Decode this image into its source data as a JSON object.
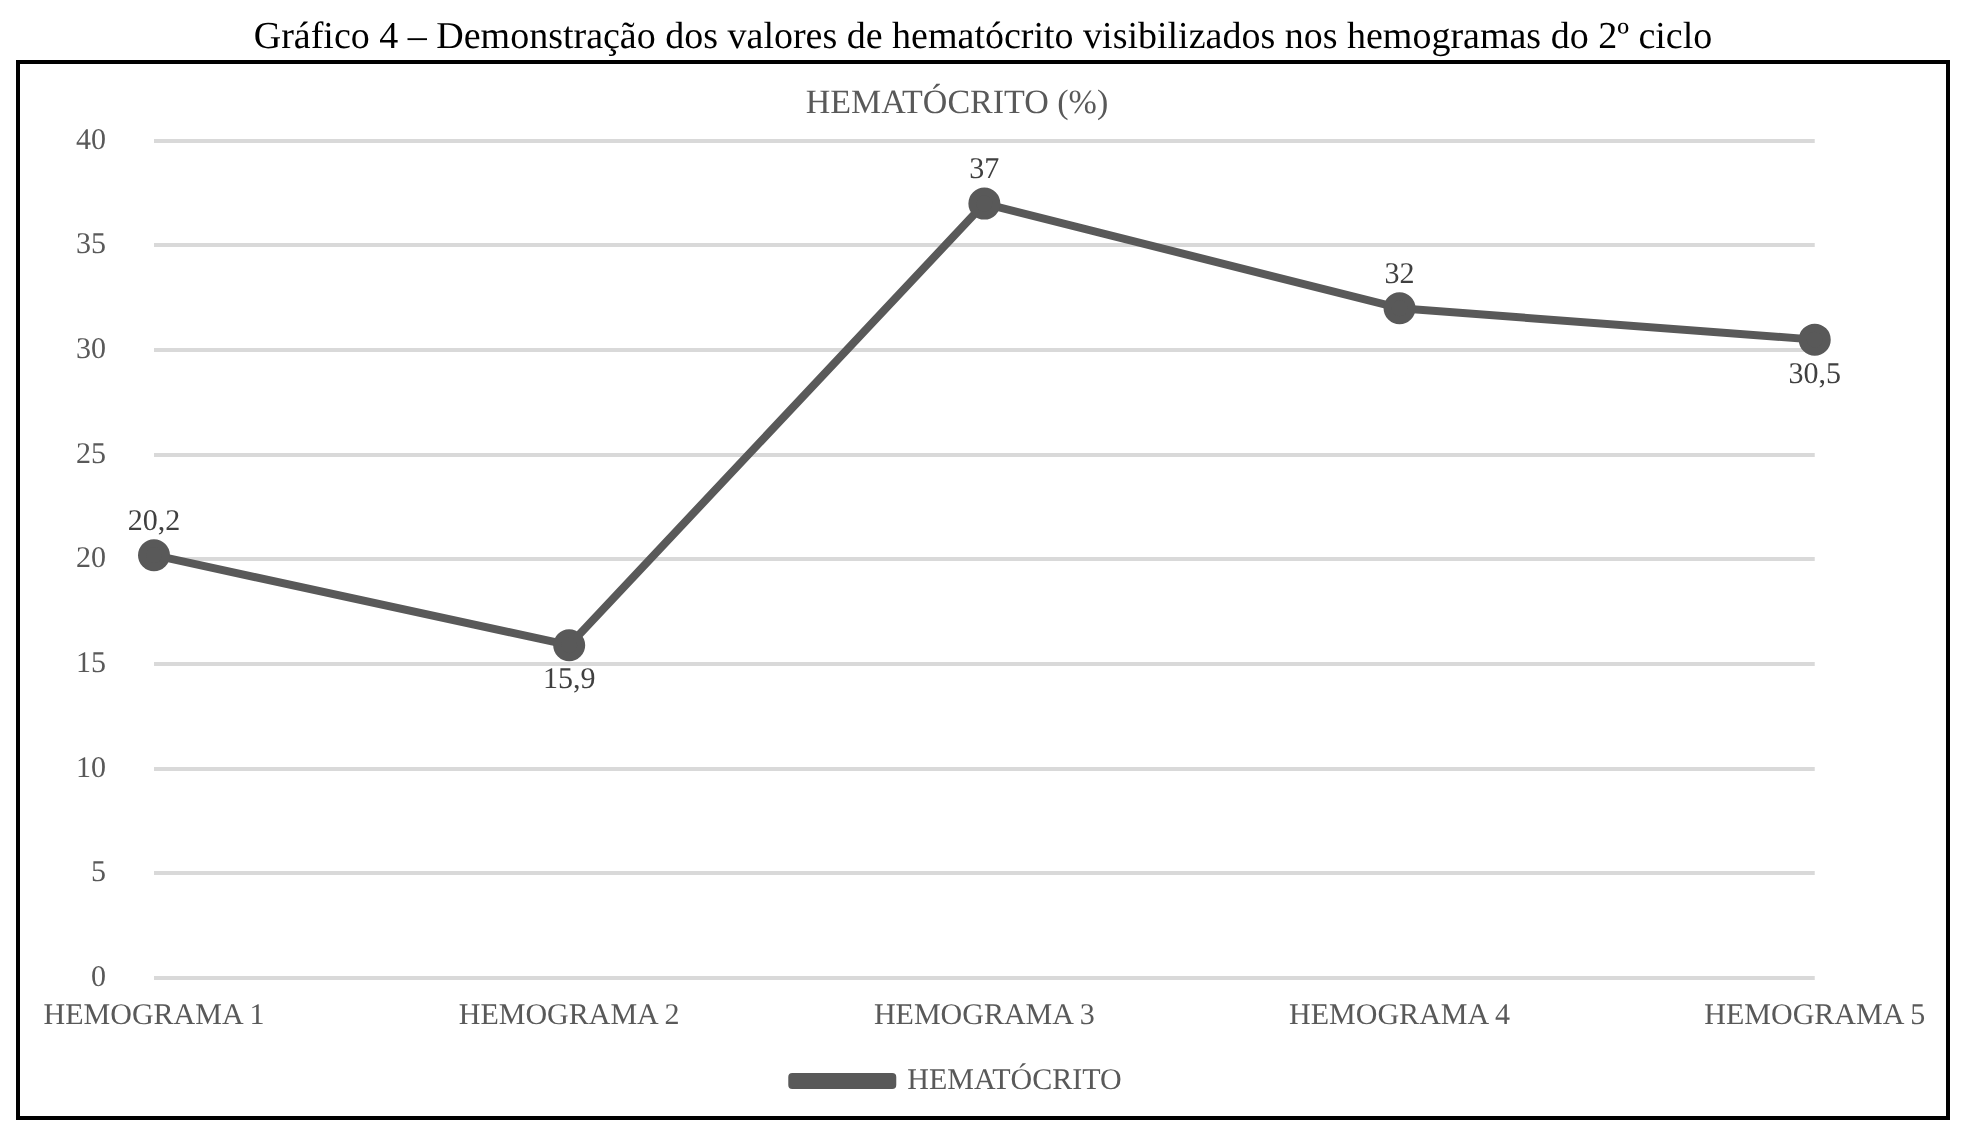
{
  "chart_data": {
    "type": "line",
    "title": "HEMATÓCRITO (%)",
    "annotations": [
      "Gráfico 4 – Demonstração dos valores de hematócrito visibilizados nos hemogramas do 2º ciclo"
    ],
    "categories": [
      "HEMOGRAMA 1",
      "HEMOGRAMA 2",
      "HEMOGRAMA 3",
      "HEMOGRAMA 4",
      "HEMOGRAMA 5"
    ],
    "series": [
      {
        "name": "HEMATÓCRITO",
        "color": "#595959",
        "values": [
          20.2,
          15.9,
          37,
          32,
          30.5
        ],
        "value_labels": [
          "20,2",
          "15,9",
          "37",
          "32",
          "30,5"
        ]
      }
    ],
    "ylim": [
      0,
      40
    ],
    "yticks": [
      0,
      5,
      10,
      15,
      20,
      25,
      30,
      35,
      40
    ],
    "grid": "y",
    "legend": "bottom",
    "marker": "circle",
    "line_style": "solid"
  }
}
